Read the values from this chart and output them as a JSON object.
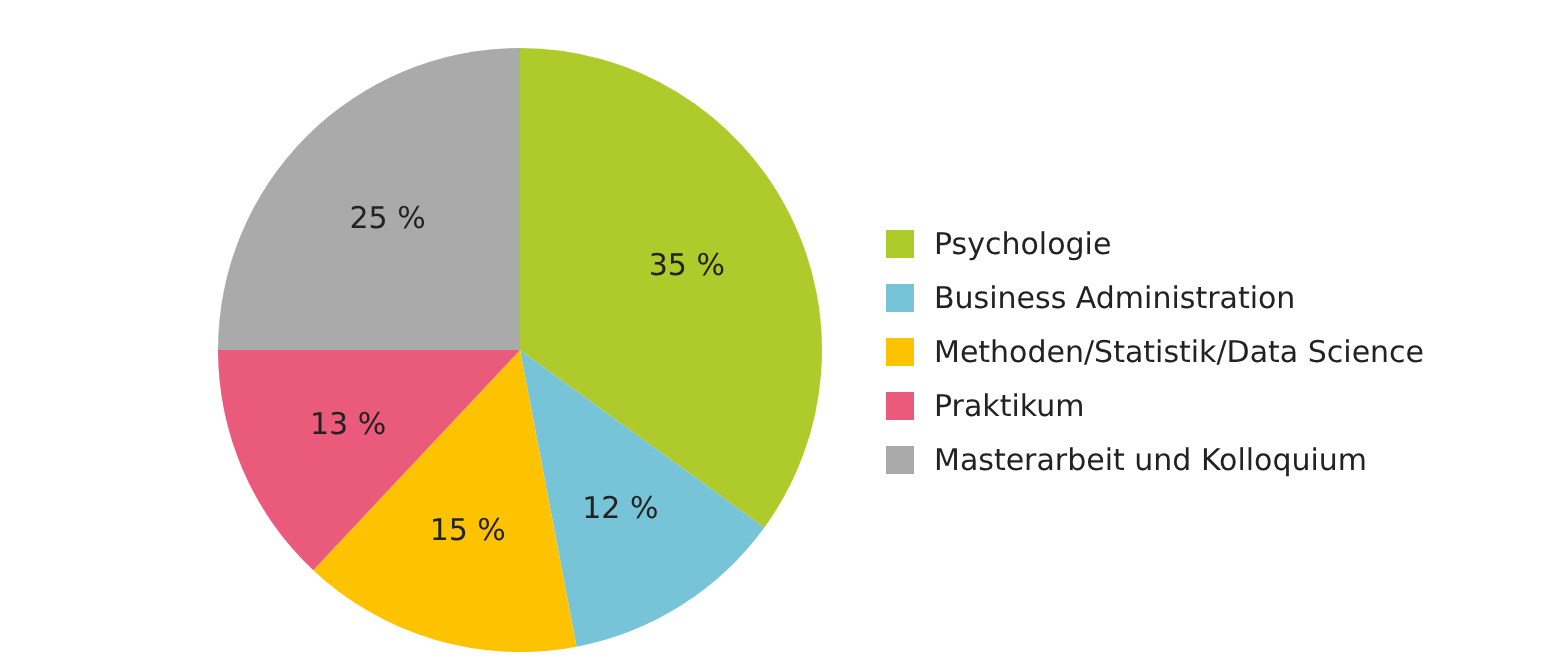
{
  "chart_data": {
    "type": "pie",
    "categories": [
      "Psychologie",
      "Business Administration",
      "Methoden/Statistik/Data Science",
      "Praktikum",
      "Masterarbeit und Kolloquium"
    ],
    "values": [
      35,
      12,
      15,
      13,
      25
    ],
    "colors": [
      "#afca2b",
      "#77c4d8",
      "#fdc200",
      "#ea5a7a",
      "#aaaaaa"
    ],
    "value_labels": [
      "35 %",
      "12 %",
      "15 %",
      "13 %",
      "25 %"
    ],
    "legend": "right"
  }
}
